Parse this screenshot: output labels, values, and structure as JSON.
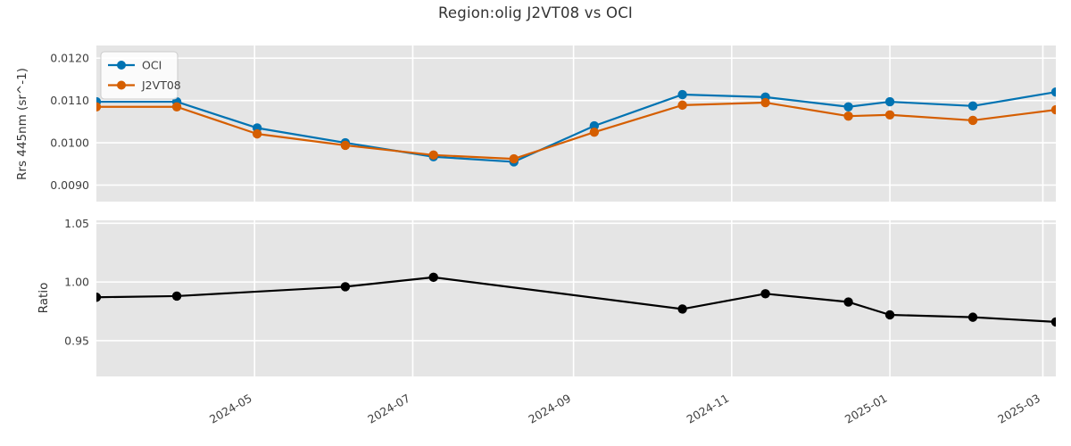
{
  "figure": {
    "title": "Region:olig J2VT08 vs OCI"
  },
  "colors": {
    "oci": "#0173b2",
    "j2vt08": "#d55e00",
    "ratio": "#000000",
    "plot_bg": "#e5e5e5",
    "grid": "#ffffff",
    "text": "#404040",
    "legend_bg": "#ffffff",
    "legend_border": "#cccccc"
  },
  "x_axis": {
    "lim": [
      "2024-03-01",
      "2025-03-06"
    ],
    "ticks": [
      {
        "date": "2024-05-01",
        "label": "2024-05"
      },
      {
        "date": "2024-07-01",
        "label": "2024-07"
      },
      {
        "date": "2024-09-01",
        "label": "2024-09"
      },
      {
        "date": "2024-11-01",
        "label": "2024-11"
      },
      {
        "date": "2025-01-01",
        "label": "2025-01"
      },
      {
        "date": "2025-03-01",
        "label": "2025-03"
      }
    ]
  },
  "chart_data": [
    {
      "type": "line",
      "title": "Region:olig J2VT08 vs OCI",
      "ylabel": "Rrs 445nm (sr^-1)",
      "ylim": [
        0.00861,
        0.0123
      ],
      "yticks": [
        {
          "value": 0.009,
          "label": "0.0090"
        },
        {
          "value": 0.01,
          "label": "0.0100"
        },
        {
          "value": 0.011,
          "label": "0.0110"
        },
        {
          "value": 0.012,
          "label": "0.0120"
        }
      ],
      "x": [
        "2024-03-01",
        "2024-04-01",
        "2024-05-02",
        "2024-06-05",
        "2024-07-09",
        "2024-08-09",
        "2024-09-09",
        "2024-10-13",
        "2024-11-14",
        "2024-12-16",
        "2025-01-01",
        "2025-02-02",
        "2025-03-06"
      ],
      "series": [
        {
          "name": "OCI",
          "color_key": "oci",
          "values": [
            0.01097,
            0.01097,
            0.01035,
            0.01,
            0.00967,
            0.00955,
            0.0104,
            0.01114,
            0.01108,
            0.01085,
            0.01097,
            0.01087,
            0.0112
          ]
        },
        {
          "name": "J2VT08",
          "color_key": "j2vt08",
          "values": [
            0.01085,
            0.01085,
            0.01021,
            0.00994,
            0.00971,
            0.00962,
            0.01025,
            0.01089,
            0.01095,
            0.01063,
            0.01066,
            0.01053,
            0.01078
          ]
        }
      ],
      "legend": {
        "position": "upper-left",
        "labels": [
          "OCI",
          "J2VT08"
        ]
      },
      "grid": true
    },
    {
      "type": "line",
      "ylabel": "Ratio",
      "ylim": [
        0.9196,
        1.0525
      ],
      "yticks": [
        {
          "value": 0.95,
          "label": "0.95"
        },
        {
          "value": 1.0,
          "label": "1.00"
        },
        {
          "value": 1.05,
          "label": "1.05"
        }
      ],
      "x": [
        "2024-03-01",
        "2024-04-01",
        "2024-06-05",
        "2024-07-09",
        "2024-10-13",
        "2024-11-14",
        "2024-12-16",
        "2025-01-01",
        "2025-02-02",
        "2025-03-06"
      ],
      "series": [
        {
          "name": "Ratio",
          "color_key": "ratio",
          "values": [
            0.987,
            0.988,
            0.996,
            1.004,
            0.977,
            0.99,
            0.983,
            0.972,
            0.97,
            0.966
          ]
        }
      ],
      "grid": true
    }
  ]
}
